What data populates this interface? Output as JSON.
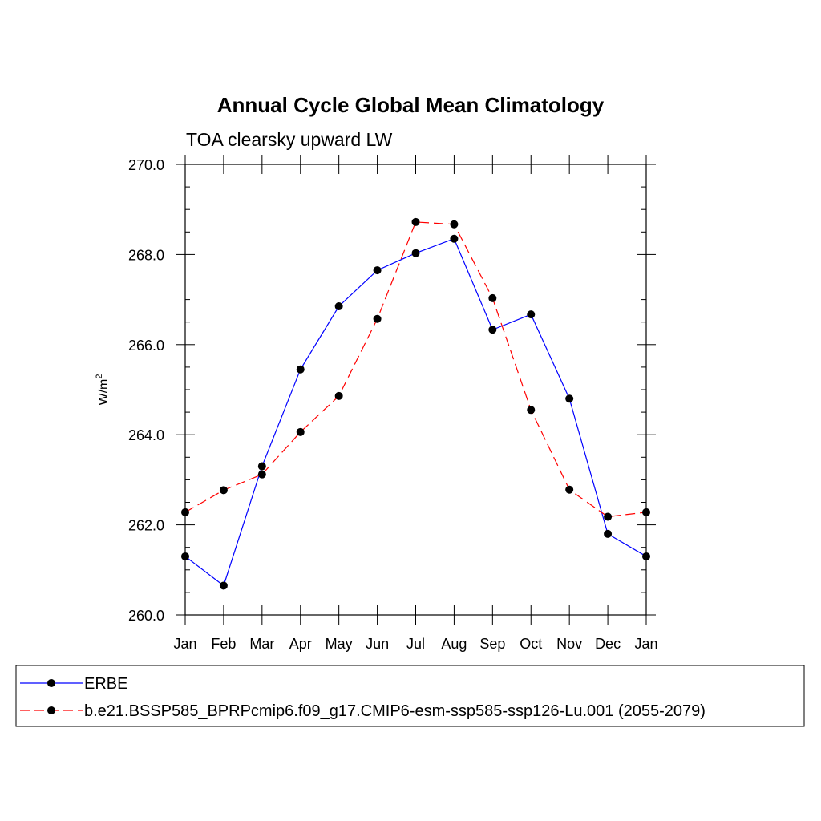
{
  "chart_data": {
    "type": "line",
    "title": "Annual Cycle Global Mean Climatology",
    "subtitle": "TOA clearsky upward LW",
    "xlabel": "",
    "ylabel": "W/m",
    "ylabel_superscript": "2",
    "categories": [
      "Jan",
      "Feb",
      "Mar",
      "Apr",
      "May",
      "Jun",
      "Jul",
      "Aug",
      "Sep",
      "Oct",
      "Nov",
      "Dec",
      "Jan"
    ],
    "ylim": [
      260.0,
      270.0
    ],
    "yticks": [
      "260.0",
      "262.0",
      "264.0",
      "266.0",
      "268.0",
      "270.0"
    ],
    "yticks_values": [
      260,
      262,
      264,
      266,
      268,
      270
    ],
    "grid": false,
    "legend_position": "bottom",
    "series": [
      {
        "name": "ERBE",
        "color": "#0000ff",
        "line_style": "solid",
        "marker": "filled-circle",
        "values": [
          261.3,
          260.65,
          263.3,
          265.45,
          266.85,
          267.65,
          268.03,
          268.35,
          266.33,
          266.67,
          264.8,
          261.8,
          261.3
        ]
      },
      {
        "name": "b.e21.BSSP585_BPRPcmip6.f09_g17.CMIP6-esm-ssp585-ssp126-Lu.001 (2055-2079)",
        "color": "#ff0000",
        "line_style": "dashed",
        "marker": "filled-circle",
        "values": [
          262.28,
          262.77,
          263.12,
          264.06,
          264.86,
          266.57,
          268.72,
          268.67,
          267.03,
          264.55,
          262.78,
          262.18,
          262.28
        ]
      }
    ]
  }
}
